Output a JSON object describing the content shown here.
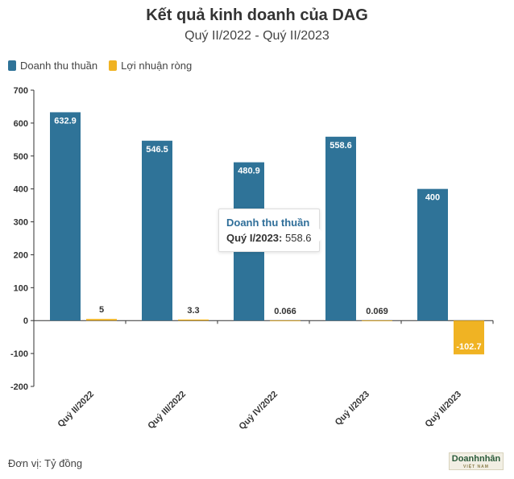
{
  "chart_data": {
    "type": "bar",
    "title": "Kết quả kinh doanh của DAG",
    "subtitle": "Quý II/2022 - Quý II/2023",
    "categories": [
      "Quý II/2022",
      "Quý III/2022",
      "Quý IV/2022",
      "Quý I/2023",
      "Quý II/2023"
    ],
    "series": [
      {
        "name": "Doanh thu thuần",
        "color": "#2f7398",
        "values": [
          632.9,
          546.5,
          480.9,
          558.6,
          400
        ],
        "labels": [
          "632.9",
          "546.5",
          "480.9",
          "558.6",
          "400"
        ]
      },
      {
        "name": "Lợi nhuận ròng",
        "color": "#f0b323",
        "values": [
          5,
          3.3,
          0.066,
          0.069,
          -102.7
        ],
        "labels": [
          "5",
          "3.3",
          "0.066",
          "0.069",
          "-102.7"
        ]
      }
    ],
    "yticks": [
      700,
      600,
      500,
      400,
      300,
      200,
      100,
      0,
      -100,
      -200
    ],
    "ylim": [
      -200,
      700
    ],
    "grid": false,
    "legend": "top-left"
  },
  "tooltip": {
    "title": "Doanh thu thuần",
    "label": "Quý I/2023:",
    "value": "558.6"
  },
  "footer": {
    "unit_note": "Đơn vị: Tỷ đồng"
  },
  "logo": {
    "text": "Doanhnhân",
    "subtext": "VIỆT NAM"
  }
}
